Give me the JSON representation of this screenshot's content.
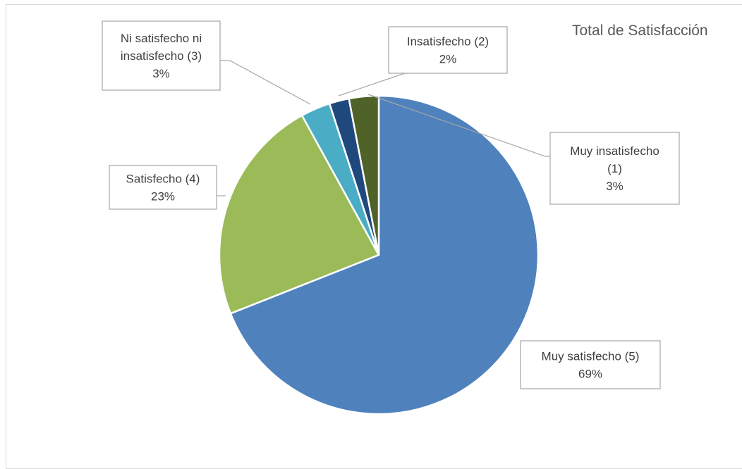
{
  "chart_data": {
    "type": "pie",
    "title": "Total de Satisfacción",
    "slices": [
      {
        "label": "Muy satisfecho (5)",
        "value": 69,
        "value_label": "69%",
        "color": "#4f81bd"
      },
      {
        "label": "Satisfecho (4)",
        "value": 23,
        "value_label": "23%",
        "color": "#9bbb59"
      },
      {
        "label": "Ni satisfecho ni insatisfecho (3)",
        "value": 3,
        "value_label": "3%",
        "color": "#4bacc6"
      },
      {
        "label": "Insatisfecho (2)",
        "value": 2,
        "value_label": "2%",
        "color": "#1f497d"
      },
      {
        "label": "Muy insatisfecho (1)",
        "value": 3,
        "value_label": "3%",
        "color": "#4f6228"
      }
    ],
    "legend": "none",
    "data_labels": "callout"
  }
}
